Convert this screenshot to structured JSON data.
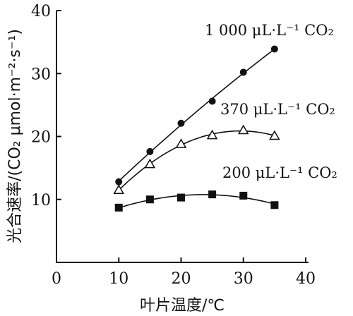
{
  "chart_data": {
    "type": "line",
    "xlabel": "叶片温度/℃",
    "ylabel": "光合速率/(CO₂ μmol·m⁻²·s⁻¹)",
    "xlim": [
      0,
      40
    ],
    "ylim": [
      0,
      40
    ],
    "xticks": [
      "0",
      "10",
      "20",
      "30",
      "40"
    ],
    "yticks": [
      "10",
      "20",
      "30",
      "40"
    ],
    "grid": false,
    "legend": "labels placed next to each curve",
    "series": [
      {
        "name": "1 000 μL·L⁻¹ CO₂",
        "marker": "filled-circle",
        "x": [
          10,
          15,
          20,
          25,
          30,
          35
        ],
        "y": [
          12.8,
          17.6,
          22.1,
          25.6,
          30.2,
          33.9
        ]
      },
      {
        "name": "370 μL·L⁻¹ CO₂",
        "marker": "open-triangle",
        "x": [
          10,
          15,
          20,
          25,
          30,
          35
        ],
        "y": [
          11.5,
          15.6,
          18.8,
          20.2,
          21.0,
          20.1
        ]
      },
      {
        "name": "200 μL·L⁻¹ CO₂",
        "marker": "filled-square",
        "x": [
          10,
          15,
          20,
          25,
          30,
          35
        ],
        "y": [
          8.7,
          10.0,
          10.3,
          10.8,
          10.6,
          9.1
        ]
      }
    ]
  }
}
